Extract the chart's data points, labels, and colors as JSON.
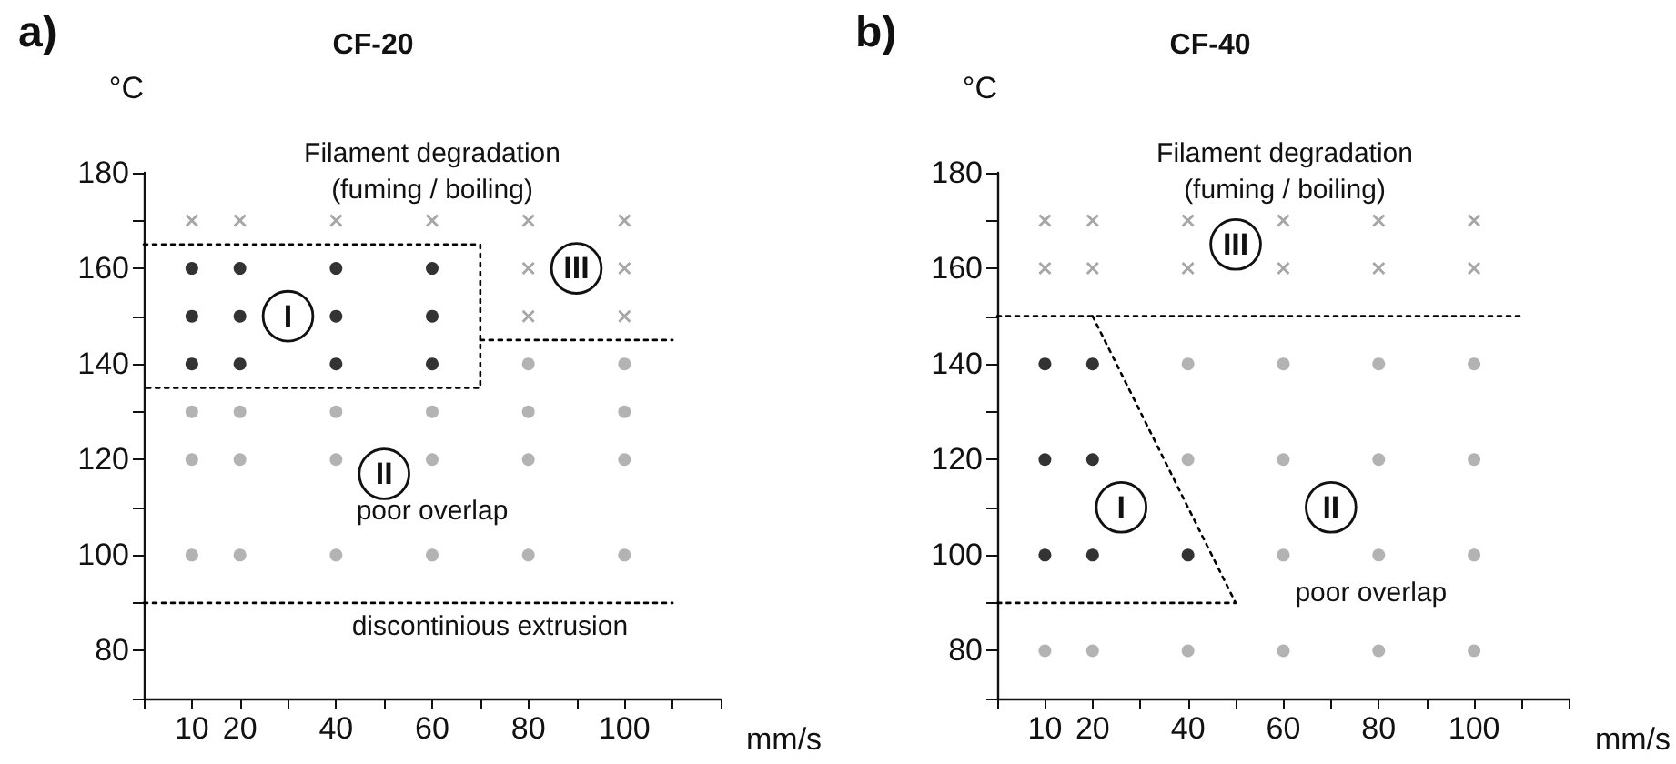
{
  "chart_data": [
    {
      "type": "scatter",
      "title": "CF-20",
      "xlabel": "mm/s",
      "ylabel": "°C",
      "annotations": [
        "a)",
        "Filament degradation\n(fuming / boiling)",
        "poor overlap",
        "discontinious extrusion",
        {
          "text": "I",
          "x": 30,
          "y": 150
        },
        {
          "text": "III",
          "x": 90,
          "y": 160
        },
        {
          "text": "II",
          "x": 50,
          "y": 117
        }
      ],
      "xlim": [
        0,
        120
      ],
      "ylim": [
        70,
        180
      ],
      "xticks": [
        {
          "value": 0,
          "label": null
        },
        10,
        20,
        {
          "value": 30,
          "label": null
        },
        40,
        {
          "value": 50,
          "label": null
        },
        60,
        {
          "value": 70,
          "label": null
        },
        80,
        {
          "value": 90,
          "label": null
        },
        100,
        {
          "value": 110,
          "label": null
        },
        {
          "value": 120,
          "label": null
        }
      ],
      "yticks": [
        {
          "value": 70,
          "label": null
        },
        80,
        {
          "value": 90,
          "label": null
        },
        100,
        {
          "value": 110,
          "label": null
        },
        120,
        {
          "value": 130,
          "label": null
        },
        140,
        {
          "value": 150,
          "label": null
        },
        160,
        {
          "value": 170,
          "label": null
        },
        180
      ],
      "grid": false,
      "series": [
        {
          "type": "scatter",
          "marker": "circle",
          "color": "#000000",
          "x": [
            10,
            20,
            40,
            60,
            10,
            20,
            40,
            60,
            10,
            20,
            40,
            60
          ],
          "values": [
            160,
            160,
            160,
            160,
            150,
            150,
            150,
            150,
            140,
            140,
            140,
            140
          ]
        },
        {
          "type": "scatter",
          "marker": "circle",
          "color": "#a0a0a0",
          "x": [
            10,
            20,
            40,
            60,
            10,
            20,
            40,
            60,
            10,
            20,
            40,
            60,
            80,
            100,
            80,
            100,
            80,
            100,
            80,
            100
          ],
          "values": [
            130,
            130,
            130,
            130,
            120,
            120,
            120,
            120,
            100,
            100,
            100,
            100,
            140,
            140,
            130,
            130,
            120,
            120,
            100,
            100
          ]
        },
        {
          "type": "scatter",
          "marker": "cross",
          "color": "#909090",
          "x": [
            10,
            20,
            40,
            60,
            80,
            100,
            80,
            100,
            80,
            100
          ],
          "values": [
            170,
            170,
            170,
            170,
            170,
            170,
            160,
            160,
            150,
            150
          ]
        },
        {
          "type": "line",
          "marker": "none",
          "line_style": "dotted",
          "color": "#000000",
          "x": [
            0,
            70,
            70,
            0
          ],
          "values": [
            165,
            165,
            135,
            135
          ]
        },
        {
          "type": "line",
          "marker": "none",
          "line_style": "dotted",
          "color": "#000000",
          "x": [
            70,
            110
          ],
          "values": [
            145,
            145
          ]
        },
        {
          "type": "line",
          "marker": "none",
          "line_style": "dotted",
          "color": "#000000",
          "x": [
            0,
            110
          ],
          "values": [
            90,
            90
          ]
        }
      ]
    },
    {
      "type": "scatter",
      "title": "CF-40",
      "xlabel": "mm/s",
      "ylabel": "°C",
      "annotations": [
        "b)",
        "Filament degradation\n(fuming / boiling)",
        "poor overlap",
        {
          "text": "III",
          "x": 50,
          "y": 165
        },
        {
          "text": "I",
          "x": 26,
          "y": 110
        },
        {
          "text": "II",
          "x": 70,
          "y": 110
        }
      ],
      "xlim": [
        0,
        120
      ],
      "ylim": [
        70,
        180
      ],
      "xticks": [
        {
          "value": 0,
          "label": null
        },
        10,
        20,
        {
          "value": 30,
          "label": null
        },
        40,
        {
          "value": 50,
          "label": null
        },
        60,
        {
          "value": 70,
          "label": null
        },
        80,
        {
          "value": 90,
          "label": null
        },
        100,
        {
          "value": 110,
          "label": null
        },
        {
          "value": 120,
          "label": null
        }
      ],
      "yticks": [
        {
          "value": 70,
          "label": null
        },
        80,
        {
          "value": 90,
          "label": null
        },
        100,
        {
          "value": 110,
          "label": null
        },
        120,
        {
          "value": 130,
          "label": null
        },
        140,
        {
          "value": 150,
          "label": null
        },
        160,
        {
          "value": 170,
          "label": null
        },
        180
      ],
      "grid": false,
      "series": [
        {
          "type": "scatter",
          "marker": "circle",
          "color": "#000000",
          "x": [
            10,
            20,
            10,
            20,
            10,
            20,
            40
          ],
          "values": [
            140,
            140,
            120,
            120,
            100,
            100,
            100
          ]
        },
        {
          "type": "scatter",
          "marker": "circle",
          "color": "#a0a0a0",
          "x": [
            40,
            60,
            80,
            100,
            40,
            60,
            80,
            100,
            60,
            80,
            100,
            10,
            20,
            40,
            60,
            80,
            100
          ],
          "values": [
            140,
            140,
            140,
            140,
            120,
            120,
            120,
            120,
            100,
            100,
            100,
            80,
            80,
            80,
            80,
            80,
            80
          ]
        },
        {
          "type": "scatter",
          "marker": "cross",
          "color": "#909090",
          "x": [
            10,
            20,
            40,
            60,
            80,
            100,
            10,
            20,
            40,
            60,
            80,
            100
          ],
          "values": [
            170,
            170,
            170,
            170,
            170,
            170,
            160,
            160,
            160,
            160,
            160,
            160
          ]
        },
        {
          "type": "line",
          "marker": "none",
          "line_style": "dotted",
          "color": "#000000",
          "x": [
            0,
            110
          ],
          "values": [
            150,
            150
          ]
        },
        {
          "type": "line",
          "marker": "none",
          "line_style": "dotted",
          "color": "#000000",
          "x": [
            20,
            50,
            0
          ],
          "values": [
            150,
            90,
            90
          ]
        }
      ]
    }
  ]
}
